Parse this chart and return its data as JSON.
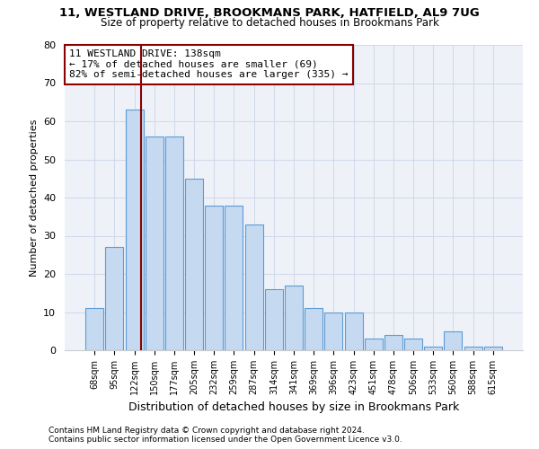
{
  "title": "11, WESTLAND DRIVE, BROOKMANS PARK, HATFIELD, AL9 7UG",
  "subtitle": "Size of property relative to detached houses in Brookmans Park",
  "xlabel": "Distribution of detached houses by size in Brookmans Park",
  "ylabel": "Number of detached properties",
  "categories": [
    "68sqm",
    "95sqm",
    "122sqm",
    "150sqm",
    "177sqm",
    "205sqm",
    "232sqm",
    "259sqm",
    "287sqm",
    "314sqm",
    "341sqm",
    "369sqm",
    "396sqm",
    "423sqm",
    "451sqm",
    "478sqm",
    "506sqm",
    "533sqm",
    "560sqm",
    "588sqm",
    "615sqm"
  ],
  "values": [
    11,
    27,
    63,
    56,
    56,
    45,
    38,
    38,
    33,
    16,
    17,
    11,
    10,
    10,
    3,
    4,
    3,
    1,
    5,
    1,
    1
  ],
  "bar_color": "#c5d9f0",
  "bar_edge_color": "#5b9bd5",
  "vline_x": 2.33,
  "vline_color": "#8b0000",
  "annotation_line1": "11 WESTLAND DRIVE: 138sqm",
  "annotation_line2": "← 17% of detached houses are smaller (69)",
  "annotation_line3": "82% of semi-detached houses are larger (335) →",
  "annotation_box_color": "white",
  "annotation_box_edge_color": "#8b0000",
  "ylim": [
    0,
    80
  ],
  "yticks": [
    0,
    10,
    20,
    30,
    40,
    50,
    60,
    70,
    80
  ],
  "grid_color": "#d0d8e8",
  "bg_color": "#eef2f8",
  "footer1": "Contains HM Land Registry data © Crown copyright and database right 2024.",
  "footer2": "Contains public sector information licensed under the Open Government Licence v3.0."
}
